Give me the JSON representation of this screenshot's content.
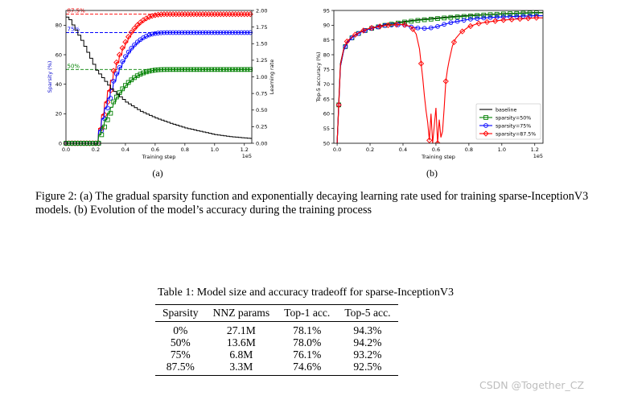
{
  "chart_data": [
    {
      "type": "line",
      "panel_label": "(a)",
      "xlabel": "Training step",
      "x_multiplier": "1e5",
      "xticks": [
        "0.0",
        "0.2",
        "0.4",
        "0.6",
        "0.8",
        "1.0",
        "1.2"
      ],
      "xlim": [
        0,
        1.25
      ],
      "ylabel_left": "Sparsity (%)",
      "ylim_left": [
        0,
        90
      ],
      "yticks_left": [
        "0",
        "20",
        "40",
        "60",
        "80"
      ],
      "ylabel_right": "Learning rate",
      "ylim_right": [
        0,
        2.0
      ],
      "yticks_right": [
        "0.00",
        "0.25",
        "0.50",
        "0.75",
        "1.00",
        "1.25",
        "1.50",
        "1.75",
        "2.00"
      ],
      "reference_lines": [
        {
          "label": "87.5%",
          "value": 87.5,
          "color": "#ff0000"
        },
        {
          "label": "75%",
          "value": 75,
          "color": "#0000ff"
        },
        {
          "label": "50%",
          "value": 50,
          "color": "#008000"
        }
      ],
      "sparsity_schedule": {
        "start_step": 0.2,
        "end_step": 0.7,
        "step_interval": 0.02
      },
      "series": [
        {
          "target": 87.5,
          "color": "#ff0000",
          "marker": "diamond"
        },
        {
          "target": 75,
          "color": "#0000ff",
          "marker": "circle"
        },
        {
          "target": 50,
          "color": "#008000",
          "marker": "square"
        }
      ],
      "learning_rate": {
        "color": "#000000",
        "x": [
          0,
          0.02,
          0.1,
          0.2,
          0.3,
          0.4,
          0.5,
          0.6,
          0.7,
          0.8,
          0.9,
          1.0,
          1.1,
          1.25
        ],
        "y": [
          1.9,
          1.86,
          1.55,
          1.1,
          0.82,
          0.62,
          0.48,
          0.38,
          0.3,
          0.23,
          0.18,
          0.13,
          0.1,
          0.07
        ]
      }
    },
    {
      "type": "line",
      "panel_label": "(b)",
      "xlabel": "Training step",
      "x_multiplier": "1e5",
      "xticks": [
        "0.0",
        "0.2",
        "0.4",
        "0.6",
        "0.8",
        "1.0",
        "1.2"
      ],
      "xlim": [
        -0.02,
        1.25
      ],
      "ylabel": "Top-5 accuracy (%)",
      "ylim": [
        50,
        95
      ],
      "yticks": [
        "50",
        "55",
        "60",
        "65",
        "70",
        "75",
        "80",
        "85",
        "90",
        "95"
      ],
      "legend_position": "lower-right",
      "series": [
        {
          "name": "baseline",
          "color": "#000000",
          "marker": "none",
          "x": [
            0,
            0.01,
            0.02,
            0.04,
            0.06,
            0.1,
            0.15,
            0.2,
            0.3,
            0.4,
            0.5,
            0.6,
            0.7,
            0.8,
            0.9,
            1.0,
            1.1,
            1.2,
            1.25
          ],
          "y": [
            50,
            64,
            77,
            82,
            84.5,
            86.5,
            88,
            89,
            90.3,
            91.2,
            91.9,
            92.4,
            92.9,
            93.3,
            93.6,
            93.9,
            94.1,
            94.3,
            94.3
          ]
        },
        {
          "name": "sparsity=50%",
          "color": "#008000",
          "marker": "square",
          "x": [
            0,
            0.01,
            0.02,
            0.04,
            0.06,
            0.1,
            0.15,
            0.2,
            0.3,
            0.4,
            0.5,
            0.6,
            0.7,
            0.8,
            0.9,
            1.0,
            1.1,
            1.2,
            1.25
          ],
          "y": [
            50,
            63,
            76,
            81.5,
            84,
            86.3,
            87.8,
            88.8,
            90.1,
            91,
            91.7,
            92.2,
            92.7,
            93.1,
            93.5,
            93.8,
            94,
            94.2,
            94.2
          ]
        },
        {
          "name": "sparsity=75%",
          "color": "#0000ff",
          "marker": "circle",
          "x": [
            0,
            0.01,
            0.02,
            0.04,
            0.06,
            0.1,
            0.15,
            0.2,
            0.3,
            0.4,
            0.45,
            0.5,
            0.55,
            0.6,
            0.65,
            0.7,
            0.8,
            0.9,
            1.0,
            1.1,
            1.2,
            1.25
          ],
          "y": [
            50,
            63,
            76,
            81.5,
            84,
            86.3,
            87.8,
            88.8,
            90,
            90.2,
            89.4,
            89.0,
            88.9,
            89.4,
            90.3,
            91.0,
            92.0,
            92.5,
            92.8,
            93.0,
            93.2,
            93.2
          ]
        },
        {
          "name": "sparsity=87.5%",
          "color": "#ff0000",
          "marker": "diamond",
          "x": [
            0,
            0.01,
            0.02,
            0.04,
            0.06,
            0.1,
            0.15,
            0.2,
            0.3,
            0.4,
            0.45,
            0.48,
            0.5,
            0.51,
            0.52,
            0.53,
            0.54,
            0.55,
            0.56,
            0.57,
            0.58,
            0.59,
            0.6,
            0.61,
            0.62,
            0.63,
            0.64,
            0.65,
            0.66,
            0.67,
            0.68,
            0.7,
            0.72,
            0.75,
            0.8,
            0.85,
            0.9,
            1.0,
            1.1,
            1.2,
            1.25
          ],
          "y": [
            50,
            63,
            76.5,
            82,
            84.5,
            86.5,
            88,
            89,
            90,
            90.3,
            89.5,
            87,
            82,
            77,
            72,
            66,
            61,
            57,
            51,
            60,
            50,
            56,
            62,
            50,
            58,
            52,
            54,
            62,
            71,
            75,
            78,
            83,
            85.5,
            87.5,
            89.5,
            90.5,
            91,
            91.7,
            92.1,
            92.5,
            92.5
          ]
        }
      ]
    }
  ],
  "figure_caption": "Figure 2: (a) The gradual sparsity function and exponentially decaying learning rate used for training sparse-InceptionV3 models. (b) Evolution of the model’s accuracy during the training process",
  "table": {
    "caption": "Table 1: Model size and accuracy tradeoff for sparse-InceptionV3",
    "headers": [
      "Sparsity",
      "NNZ params",
      "Top-1 acc.",
      "Top-5 acc."
    ],
    "rows": [
      [
        "0%",
        "27.1M",
        "78.1%",
        "94.3%"
      ],
      [
        "50%",
        "13.6M",
        "78.0%",
        "94.2%"
      ],
      [
        "75%",
        "6.8M",
        "76.1%",
        "93.2%"
      ],
      [
        "87.5%",
        "3.3M",
        "74.6%",
        "92.5%"
      ]
    ]
  },
  "watermark": "CSDN @Together_CZ"
}
